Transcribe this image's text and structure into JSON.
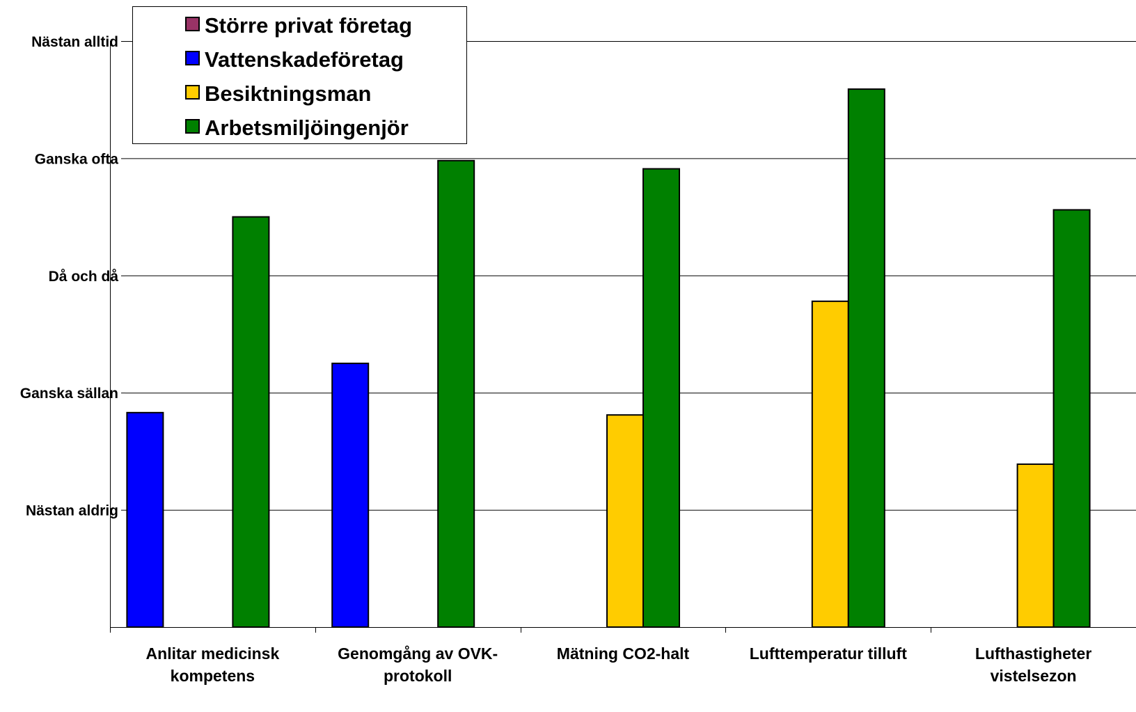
{
  "chart_data": {
    "type": "bar",
    "title": "",
    "xlabel": "",
    "ylabel": "",
    "ylim": [
      0,
      5
    ],
    "y_tick_values": [
      1,
      2,
      3,
      4,
      5
    ],
    "y_tick_labels": [
      "Nästan aldrig",
      "Ganska sällan",
      "Då och då",
      "Ganska ofta",
      "Nästan alltid"
    ],
    "grid": "horizontal",
    "legend_position": "top-left",
    "categories": [
      [
        "Anlitar medicinsk",
        "kompetens"
      ],
      [
        "Genomgång av OVK-",
        "protokoll"
      ],
      [
        "Mätning CO2-halt"
      ],
      [
        "Lufttemperatur tilluft"
      ],
      [
        "Lufthastigheter",
        "vistelsezon"
      ]
    ],
    "series": [
      {
        "name": "Större privat företag",
        "color": "#993366",
        "values": [
          null,
          null,
          null,
          null,
          null
        ]
      },
      {
        "name": "Vattenskadeföretag",
        "color": "#0000ff",
        "values": [
          1.83,
          2.25,
          null,
          null,
          null
        ]
      },
      {
        "name": "Besiktningsman",
        "color": "#ffcc00",
        "values": [
          null,
          null,
          1.81,
          2.78,
          1.39
        ]
      },
      {
        "name": "Arbetsmiljöingenjör",
        "color": "#008000",
        "values": [
          3.5,
          3.98,
          3.91,
          4.59,
          3.56
        ]
      }
    ]
  }
}
